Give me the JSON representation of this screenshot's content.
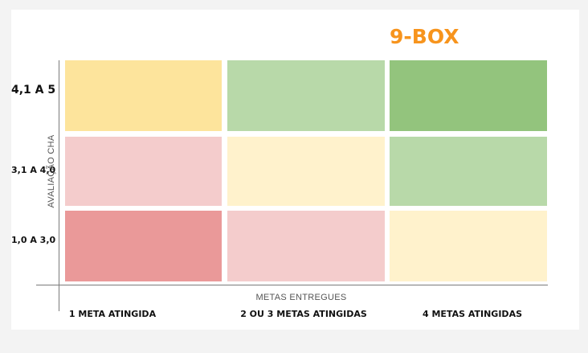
{
  "title": "9-BOX",
  "y_axis": {
    "title": "AVALIAÇÃO CHA",
    "labels": [
      "4,1 A 5",
      "3,1 A 4,0",
      "1,0 A 3,0"
    ]
  },
  "x_axis": {
    "title": "METAS ENTREGUES",
    "labels": [
      "1 META ATINGIDA",
      "2 OU 3 METAS ATINGIDAS",
      "4 METAS ATINGIDAS"
    ]
  },
  "grid": {
    "rows": [
      [
        "#fde49c",
        "#b8d9a9",
        "#93c47d"
      ],
      [
        "#f4cccc",
        "#fff2cc",
        "#b8d9a9"
      ],
      [
        "#ea9999",
        "#f4cccc",
        "#fff2cc"
      ]
    ]
  }
}
